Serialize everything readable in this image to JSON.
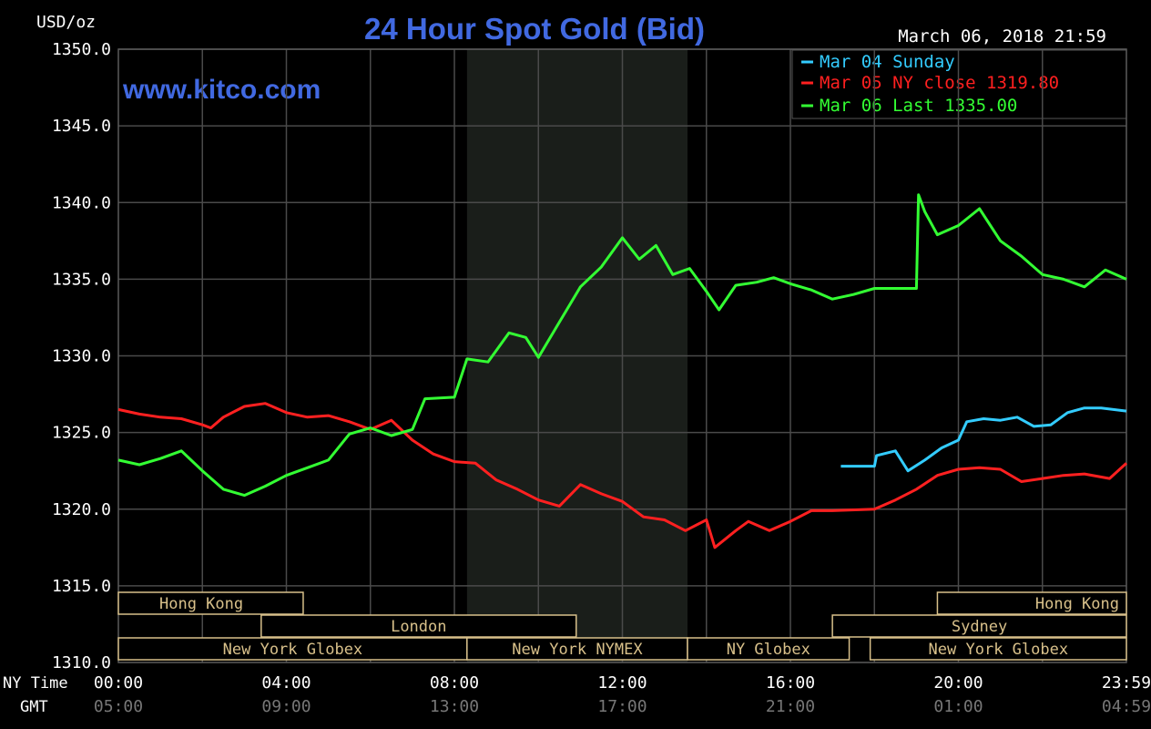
{
  "chart_data": {
    "type": "line",
    "title": "24 Hour Spot Gold (Bid)",
    "ylabel": "USD/oz",
    "datetime": "March 06, 2018 21:59",
    "watermark": "www.kitco.com",
    "ylim": [
      1310,
      1350
    ],
    "yticks": [
      "1310.0",
      "1315.0",
      "1320.0",
      "1325.0",
      "1330.0",
      "1335.0",
      "1340.0",
      "1345.0",
      "1350.0"
    ],
    "x_range_hours": [
      0,
      24
    ],
    "x_row_labels": {
      "ny": "NY Time",
      "gmt": "GMT"
    },
    "x_ticks": [
      {
        "hour": 0,
        "ny": "00:00",
        "gmt": "05:00"
      },
      {
        "hour": 4,
        "ny": "04:00",
        "gmt": "09:00"
      },
      {
        "hour": 8,
        "ny": "08:00",
        "gmt": "13:00"
      },
      {
        "hour": 12,
        "ny": "12:00",
        "gmt": "17:00"
      },
      {
        "hour": 16,
        "ny": "16:00",
        "gmt": "21:00"
      },
      {
        "hour": 20,
        "ny": "20:00",
        "gmt": "01:00"
      },
      {
        "hour": 24,
        "ny": "23:59",
        "gmt": "04:59"
      }
    ],
    "grid": true,
    "legend_position": "top-right",
    "shaded_period_hours": [
      8.3,
      13.55
    ],
    "series": [
      {
        "name": "Mar 04 Sunday",
        "color": "#33CCFF",
        "points": [
          [
            17.2,
            1322.8
          ],
          [
            18.0,
            1322.8
          ],
          [
            18.05,
            1323.5
          ],
          [
            18.5,
            1323.8
          ],
          [
            18.8,
            1322.5
          ],
          [
            19.2,
            1323.2
          ],
          [
            19.6,
            1324.0
          ],
          [
            20.0,
            1324.5
          ],
          [
            20.2,
            1325.7
          ],
          [
            20.6,
            1325.9
          ],
          [
            21.0,
            1325.8
          ],
          [
            21.4,
            1326.0
          ],
          [
            21.8,
            1325.4
          ],
          [
            22.2,
            1325.5
          ],
          [
            22.6,
            1326.3
          ],
          [
            23.0,
            1326.6
          ],
          [
            23.4,
            1326.6
          ],
          [
            24.0,
            1326.4
          ]
        ]
      },
      {
        "name": "Mar 05 NY close 1319.80",
        "color": "#FF2020",
        "points": [
          [
            0,
            1326.5
          ],
          [
            0.5,
            1326.2
          ],
          [
            1,
            1326.0
          ],
          [
            1.5,
            1325.9
          ],
          [
            2,
            1325.5
          ],
          [
            2.2,
            1325.3
          ],
          [
            2.5,
            1326.0
          ],
          [
            3,
            1326.7
          ],
          [
            3.5,
            1326.9
          ],
          [
            4,
            1326.3
          ],
          [
            4.5,
            1326.0
          ],
          [
            5,
            1326.1
          ],
          [
            5.5,
            1325.7
          ],
          [
            6,
            1325.2
          ],
          [
            6.5,
            1325.8
          ],
          [
            7,
            1324.5
          ],
          [
            7.5,
            1323.6
          ],
          [
            8,
            1323.1
          ],
          [
            8.5,
            1323.0
          ],
          [
            9,
            1321.9
          ],
          [
            9.5,
            1321.3
          ],
          [
            10,
            1320.6
          ],
          [
            10.5,
            1320.2
          ],
          [
            11,
            1321.6
          ],
          [
            11.5,
            1321.0
          ],
          [
            12,
            1320.5
          ],
          [
            12.5,
            1319.5
          ],
          [
            13,
            1319.3
          ],
          [
            13.5,
            1318.6
          ],
          [
            14,
            1319.3
          ],
          [
            14.2,
            1317.5
          ],
          [
            14.7,
            1318.6
          ],
          [
            15,
            1319.2
          ],
          [
            15.5,
            1318.6
          ],
          [
            16,
            1319.2
          ],
          [
            16.5,
            1319.9
          ],
          [
            17,
            1319.9
          ],
          [
            18,
            1320.0
          ],
          [
            18.5,
            1320.6
          ],
          [
            19,
            1321.3
          ],
          [
            19.5,
            1322.2
          ],
          [
            20,
            1322.6
          ],
          [
            20.5,
            1322.7
          ],
          [
            21,
            1322.6
          ],
          [
            21.5,
            1321.8
          ],
          [
            22,
            1322.0
          ],
          [
            22.5,
            1322.2
          ],
          [
            23,
            1322.3
          ],
          [
            23.6,
            1322.0
          ],
          [
            24,
            1323.0
          ]
        ]
      },
      {
        "name": "Mar 06 Last 1335.00",
        "color": "#33FF33",
        "points": [
          [
            0,
            1323.2
          ],
          [
            0.5,
            1322.9
          ],
          [
            1,
            1323.3
          ],
          [
            1.5,
            1323.8
          ],
          [
            2,
            1322.5
          ],
          [
            2.5,
            1321.3
          ],
          [
            3,
            1320.9
          ],
          [
            3.5,
            1321.5
          ],
          [
            4,
            1322.2
          ],
          [
            4.5,
            1322.7
          ],
          [
            5,
            1323.2
          ],
          [
            5.5,
            1324.9
          ],
          [
            6,
            1325.3
          ],
          [
            6.5,
            1324.8
          ],
          [
            7,
            1325.2
          ],
          [
            7.3,
            1327.2
          ],
          [
            8,
            1327.3
          ],
          [
            8.3,
            1329.8
          ],
          [
            8.8,
            1329.6
          ],
          [
            9.3,
            1331.5
          ],
          [
            9.7,
            1331.2
          ],
          [
            10.0,
            1329.9
          ],
          [
            10.5,
            1332.2
          ],
          [
            11,
            1334.5
          ],
          [
            11.5,
            1335.8
          ],
          [
            12,
            1337.7
          ],
          [
            12.4,
            1336.3
          ],
          [
            12.8,
            1337.2
          ],
          [
            13.2,
            1335.3
          ],
          [
            13.6,
            1335.7
          ],
          [
            14.0,
            1334.2
          ],
          [
            14.3,
            1333.0
          ],
          [
            14.7,
            1334.6
          ],
          [
            15.2,
            1334.8
          ],
          [
            15.6,
            1335.1
          ],
          [
            16,
            1334.7
          ],
          [
            16.5,
            1334.3
          ],
          [
            17,
            1333.7
          ],
          [
            17.5,
            1334.0
          ],
          [
            18.0,
            1334.4
          ],
          [
            19.0,
            1334.4
          ],
          [
            19.05,
            1340.5
          ],
          [
            19.2,
            1339.4
          ],
          [
            19.5,
            1337.9
          ],
          [
            20.0,
            1338.5
          ],
          [
            20.5,
            1339.6
          ],
          [
            21.0,
            1337.5
          ],
          [
            21.5,
            1336.5
          ],
          [
            22,
            1335.3
          ],
          [
            22.5,
            1335.0
          ],
          [
            23,
            1334.5
          ],
          [
            23.5,
            1335.6
          ],
          [
            24,
            1335.0
          ]
        ]
      }
    ],
    "sessions": [
      {
        "label": "Hong Kong",
        "row": 0,
        "start": 0,
        "end": 4.4,
        "align": "left"
      },
      {
        "label": "Hong Kong",
        "row": 0,
        "start": 19.5,
        "end": 24,
        "align": "right"
      },
      {
        "label": "London",
        "row": 1,
        "start": 3.4,
        "end": 10.9,
        "align": "center"
      },
      {
        "label": "Sydney",
        "row": 1,
        "start": 17.0,
        "end": 24,
        "align": "center"
      },
      {
        "label": "New York Globex",
        "row": 2,
        "start": 0,
        "end": 8.3,
        "align": "center"
      },
      {
        "label": "New York NYMEX",
        "row": 2,
        "start": 8.3,
        "end": 13.55,
        "align": "center"
      },
      {
        "label": "NY Globex",
        "row": 2,
        "start": 13.55,
        "end": 17.4,
        "align": "center"
      },
      {
        "label": "New York Globex",
        "row": 2,
        "start": 17.9,
        "end": 24,
        "align": "center"
      }
    ]
  }
}
